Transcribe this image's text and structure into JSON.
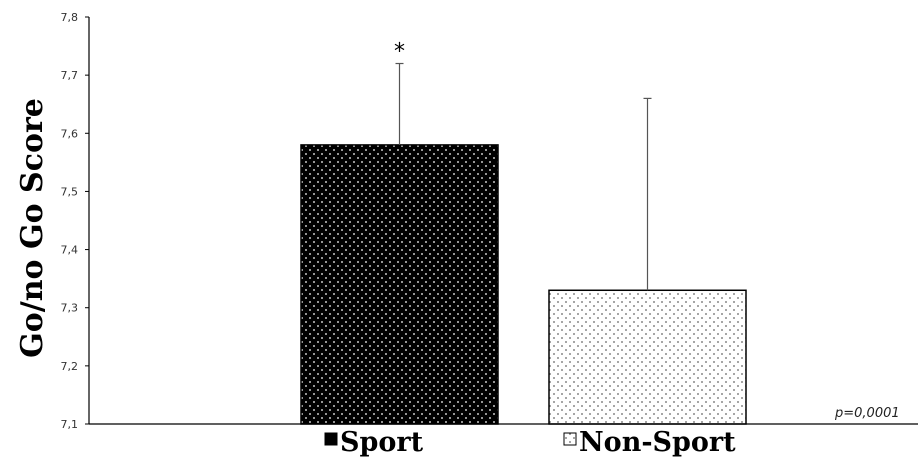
{
  "chart_data": {
    "type": "bar",
    "categories": [
      "Sport",
      "Non-Sport"
    ],
    "values": [
      7.58,
      7.33
    ],
    "error_upper": [
      7.72,
      7.66
    ],
    "ylabel": "Go/no Go Score",
    "ylim": [
      7.1,
      7.8
    ],
    "yticks": [
      7.1,
      7.2,
      7.3,
      7.4,
      7.5,
      7.6,
      7.7,
      7.8
    ],
    "ytick_labels": [
      "7,1",
      "7,2",
      "7,3",
      "7,4",
      "7,5",
      "7,6",
      "7,7",
      "7,8"
    ],
    "significance_marker": "*",
    "annotation": "p=0,0001",
    "legend": [
      "Sport",
      "Non-Sport"
    ],
    "legend_position": "bottom",
    "grid": false,
    "colors": {
      "sport": "#000000",
      "non_sport": "#ffffff",
      "dots_on_dark": "#ffffff",
      "dots_on_light": "#666666"
    }
  }
}
